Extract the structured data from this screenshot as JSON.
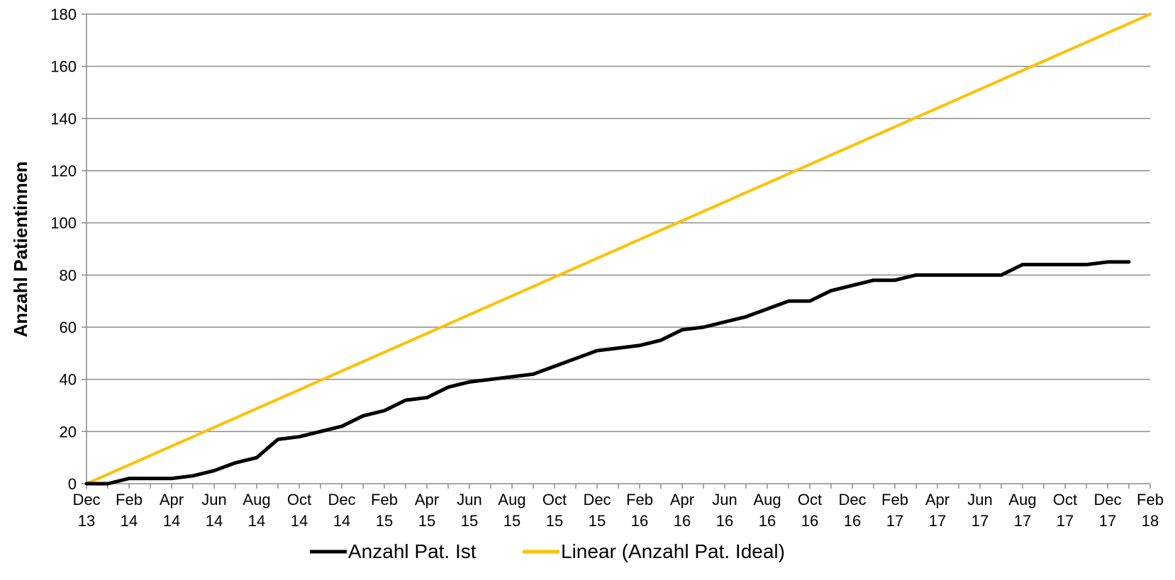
{
  "chart_data": {
    "type": "line",
    "title": "",
    "xlabel": "",
    "ylabel": "Anzahl Patientinnen",
    "ylim": [
      0,
      180
    ],
    "yticks": [
      0,
      20,
      40,
      60,
      80,
      100,
      120,
      140,
      160,
      180
    ],
    "xlim": [
      "2013-12",
      "2018-02"
    ],
    "xtick_labels": [
      {
        "month": "Dec",
        "year": "13",
        "date": "2013-12"
      },
      {
        "month": "Feb",
        "year": "14",
        "date": "2014-02"
      },
      {
        "month": "Apr",
        "year": "14",
        "date": "2014-04"
      },
      {
        "month": "Jun",
        "year": "14",
        "date": "2014-06"
      },
      {
        "month": "Aug",
        "year": "14",
        "date": "2014-08"
      },
      {
        "month": "Oct",
        "year": "14",
        "date": "2014-10"
      },
      {
        "month": "Dec",
        "year": "14",
        "date": "2014-12"
      },
      {
        "month": "Feb",
        "year": "15",
        "date": "2015-02"
      },
      {
        "month": "Apr",
        "year": "15",
        "date": "2015-04"
      },
      {
        "month": "Jun",
        "year": "15",
        "date": "2015-06"
      },
      {
        "month": "Aug",
        "year": "15",
        "date": "2015-08"
      },
      {
        "month": "Oct",
        "year": "15",
        "date": "2015-10"
      },
      {
        "month": "Dec",
        "year": "15",
        "date": "2015-12"
      },
      {
        "month": "Feb",
        "year": "16",
        "date": "2016-02"
      },
      {
        "month": "Apr",
        "year": "16",
        "date": "2016-04"
      },
      {
        "month": "Jun",
        "year": "16",
        "date": "2016-06"
      },
      {
        "month": "Aug",
        "year": "16",
        "date": "2016-08"
      },
      {
        "month": "Oct",
        "year": "16",
        "date": "2016-10"
      },
      {
        "month": "Dec",
        "year": "16",
        "date": "2016-12"
      },
      {
        "month": "Feb",
        "year": "17",
        "date": "2017-02"
      },
      {
        "month": "Apr",
        "year": "17",
        "date": "2017-04"
      },
      {
        "month": "Jun",
        "year": "17",
        "date": "2017-06"
      },
      {
        "month": "Aug",
        "year": "17",
        "date": "2017-08"
      },
      {
        "month": "Oct",
        "year": "17",
        "date": "2017-10"
      },
      {
        "month": "Dec",
        "year": "17",
        "date": "2017-12"
      },
      {
        "month": "Feb",
        "year": "18",
        "date": "2018-02"
      }
    ],
    "grid": "horizontal",
    "legend_position": "bottom",
    "series": [
      {
        "name": "Anzahl Pat. Ist",
        "color": "#000000",
        "x": [
          "2013-12",
          "2014-01",
          "2014-02",
          "2014-03",
          "2014-04",
          "2014-05",
          "2014-06",
          "2014-07",
          "2014-08",
          "2014-09",
          "2014-10",
          "2014-11",
          "2014-12",
          "2015-01",
          "2015-02",
          "2015-03",
          "2015-04",
          "2015-05",
          "2015-06",
          "2015-07",
          "2015-08",
          "2015-09",
          "2015-10",
          "2015-11",
          "2015-12",
          "2016-01",
          "2016-02",
          "2016-03",
          "2016-04",
          "2016-05",
          "2016-06",
          "2016-07",
          "2016-08",
          "2016-09",
          "2016-10",
          "2016-11",
          "2016-12",
          "2017-01",
          "2017-02",
          "2017-03",
          "2017-04",
          "2017-05",
          "2017-06",
          "2017-07",
          "2017-08",
          "2017-09",
          "2017-10",
          "2017-11",
          "2017-12",
          "2018-01"
        ],
        "values": [
          0,
          0,
          2,
          2,
          2,
          3,
          5,
          8,
          10,
          17,
          18,
          20,
          22,
          26,
          28,
          32,
          33,
          37,
          39,
          40,
          41,
          42,
          45,
          48,
          51,
          52,
          53,
          55,
          59,
          60,
          62,
          64,
          67,
          70,
          70,
          74,
          76,
          78,
          78,
          80,
          80,
          80,
          80,
          80,
          84,
          84,
          84,
          84,
          85,
          85
        ]
      },
      {
        "name": "Linear (Anzahl Pat. Ideal)",
        "color": "#ffc000",
        "x": [
          "2013-12",
          "2018-02"
        ],
        "values": [
          0,
          180
        ]
      }
    ]
  }
}
